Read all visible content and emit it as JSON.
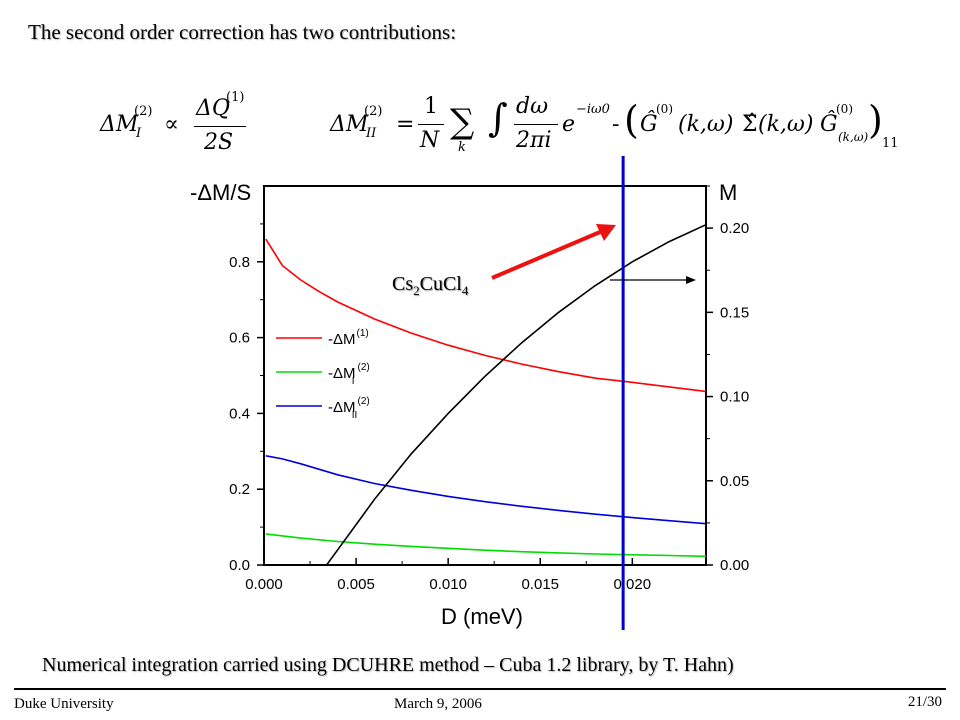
{
  "heading": "The second order correction has two contributions:",
  "formula_left": {
    "lhs": "ΔM",
    "lhs_sub": "I",
    "lhs_sup": "(2)",
    "relation": "∝",
    "numerator": "ΔQ",
    "numerator_sup": "(1)",
    "denominator": "2S"
  },
  "formula_right": {
    "lhs": "ΔM",
    "lhs_sub": "II",
    "lhs_sup": "(2)",
    "equals": "=",
    "frac_num": "1",
    "frac_den": "N",
    "sum_index": "k",
    "dw": "dω",
    "dw_den": "2πi",
    "exp_base": "e",
    "exp_power": "−iω0",
    "G1": "Ĝ",
    "G1_sup": "(0)",
    "G1_args": "(k,ω)",
    "Sigma": "Σ̂",
    "Sigma_args": "(k,ω)",
    "G2": "Ĝ",
    "G2_sup": "(0)",
    "G2_args": "(k,ω)",
    "outer_sub": "11",
    "dash": "-"
  },
  "chart_data": {
    "type": "line",
    "xlabel": "D (meV)",
    "ylabel_left": "-ΔM/S",
    "ylabel_right": "M",
    "xlim": [
      0.0,
      0.024
    ],
    "ylim_left": [
      0.0,
      1.0
    ],
    "ylim_right": [
      0.0,
      0.225
    ],
    "x_ticks": [
      "0.000",
      "0.005",
      "0.010",
      "0.015",
      "0.020"
    ],
    "y_left_ticks": [
      "0.0",
      "0.2",
      "0.4",
      "0.6",
      "0.8"
    ],
    "y_right_ticks": [
      "0.00",
      "0.05",
      "0.10",
      "0.15",
      "0.20"
    ],
    "legend_position": "left-middle",
    "series": [
      {
        "name": "-ΔM(1)",
        "label_base": "-ΔM",
        "label_sub": "",
        "label_sup": "(1)",
        "axis": "left",
        "color": "#ff0000",
        "x": [
          0.0001,
          0.001,
          0.002,
          0.003,
          0.004,
          0.006,
          0.008,
          0.01,
          0.012,
          0.014,
          0.016,
          0.018,
          0.02,
          0.022,
          0.024
        ],
        "y": [
          0.86,
          0.79,
          0.752,
          0.721,
          0.694,
          0.649,
          0.612,
          0.58,
          0.553,
          0.53,
          0.51,
          0.493,
          0.482,
          0.47,
          0.458
        ]
      },
      {
        "name": "-ΔM_I(2)",
        "label_base": "-ΔM",
        "label_sub": "I",
        "label_sup": "(2)",
        "axis": "left",
        "color": "#00dd00",
        "x": [
          0.0001,
          0.002,
          0.004,
          0.006,
          0.008,
          0.01,
          0.012,
          0.014,
          0.016,
          0.018,
          0.02,
          0.022,
          0.024
        ],
        "y": [
          0.082,
          0.071,
          0.062,
          0.055,
          0.049,
          0.044,
          0.039,
          0.035,
          0.032,
          0.029,
          0.027,
          0.025,
          0.023
        ]
      },
      {
        "name": "-ΔM_II(2)",
        "label_base": "-ΔM",
        "label_sub": "II",
        "label_sup": "(2)",
        "axis": "left",
        "color": "#0000dd",
        "x": [
          0.0001,
          0.001,
          0.002,
          0.004,
          0.006,
          0.008,
          0.01,
          0.012,
          0.014,
          0.016,
          0.018,
          0.02,
          0.022,
          0.024
        ],
        "y": [
          0.288,
          0.28,
          0.267,
          0.238,
          0.215,
          0.197,
          0.181,
          0.167,
          0.155,
          0.144,
          0.134,
          0.125,
          0.117,
          0.109
        ]
      },
      {
        "name": "M",
        "axis": "right",
        "color": "#000000",
        "x": [
          0.0034,
          0.004,
          0.005,
          0.006,
          0.008,
          0.01,
          0.012,
          0.014,
          0.016,
          0.018,
          0.02,
          0.022,
          0.024
        ],
        "y": [
          0.0,
          0.009,
          0.024,
          0.039,
          0.066,
          0.09,
          0.112,
          0.132,
          0.15,
          0.166,
          0.18,
          0.192,
          0.202
        ]
      }
    ],
    "annotations": {
      "material_base": "Cs",
      "material_sub1": "2",
      "material_mid": "CuCl",
      "material_sub2": "4",
      "marker_x": 0.0195,
      "marker_color": "#0000cc",
      "arrow_color": "#ee1111"
    }
  },
  "footnote": "Numerical integration carried using DCUHRE method – Cuba 1.2 library, by T. Hahn)",
  "footer": {
    "left": "Duke University",
    "center": "March 9, 2006",
    "right": "21/30"
  }
}
